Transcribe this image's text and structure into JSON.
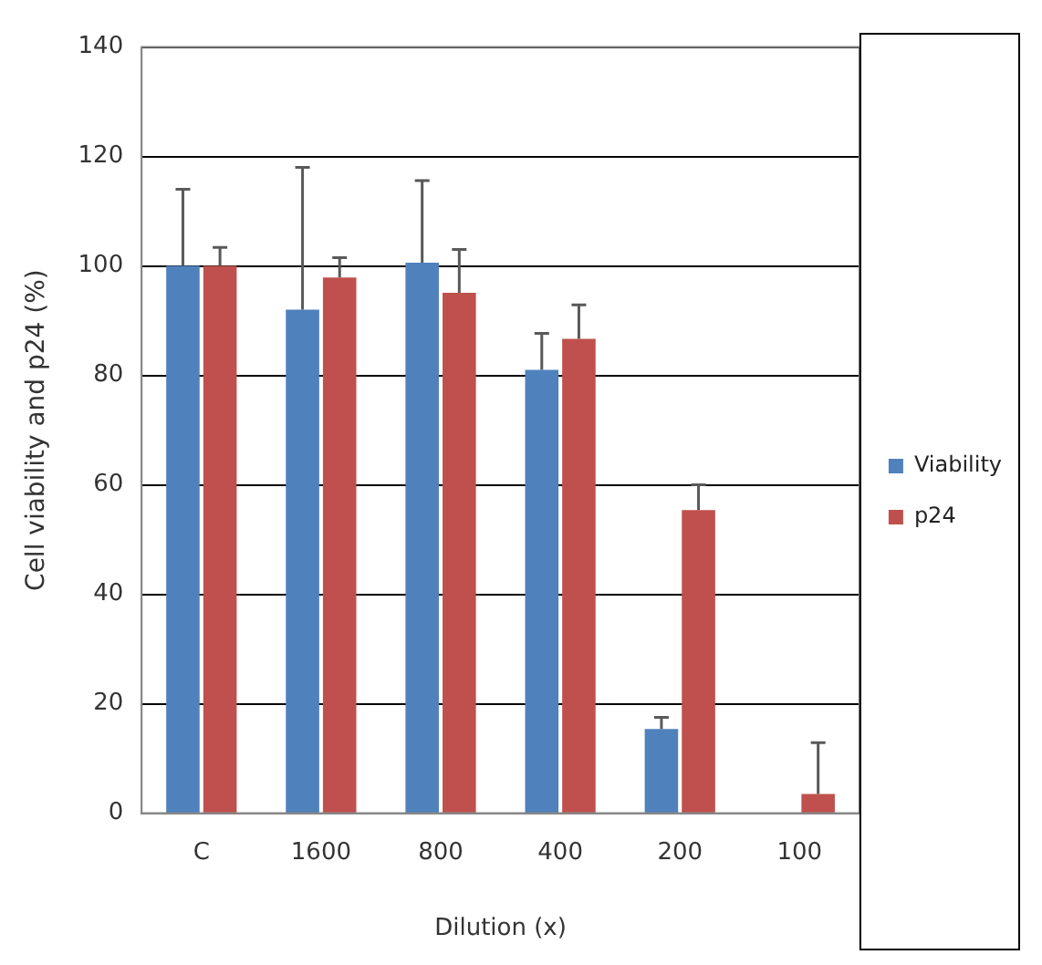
{
  "chart_data": {
    "type": "bar",
    "xlabel": "Dilution (x)",
    "ylabel": "Cell viability and p24 (%)",
    "categories": [
      "C",
      "1600",
      "800",
      "400",
      "200",
      "100"
    ],
    "series": [
      {
        "name": "Viability",
        "color": "#4f81bd",
        "values": [
          100,
          92,
          100.6,
          81,
          15.4,
          0
        ],
        "errors": [
          [
            100,
            114
          ],
          [
            92,
            118
          ],
          [
            100.6,
            115.6
          ],
          [
            81,
            87.7
          ],
          [
            15.4,
            17.5
          ],
          null
        ]
      },
      {
        "name": "p24",
        "color": "#c0504d",
        "values": [
          100,
          97.9,
          95.1,
          86.7,
          55.4,
          3.5
        ],
        "errors": [
          [
            100,
            103.4
          ],
          [
            97.9,
            101.5
          ],
          [
            95.1,
            103
          ],
          [
            86.7,
            92.9
          ],
          [
            55.4,
            60
          ],
          [
            3.5,
            12.9
          ]
        ]
      }
    ],
    "ylim": [
      0,
      140
    ],
    "yticks": [
      0,
      20,
      40,
      60,
      80,
      100,
      120,
      140
    ],
    "grid": "y",
    "legend": "right"
  }
}
